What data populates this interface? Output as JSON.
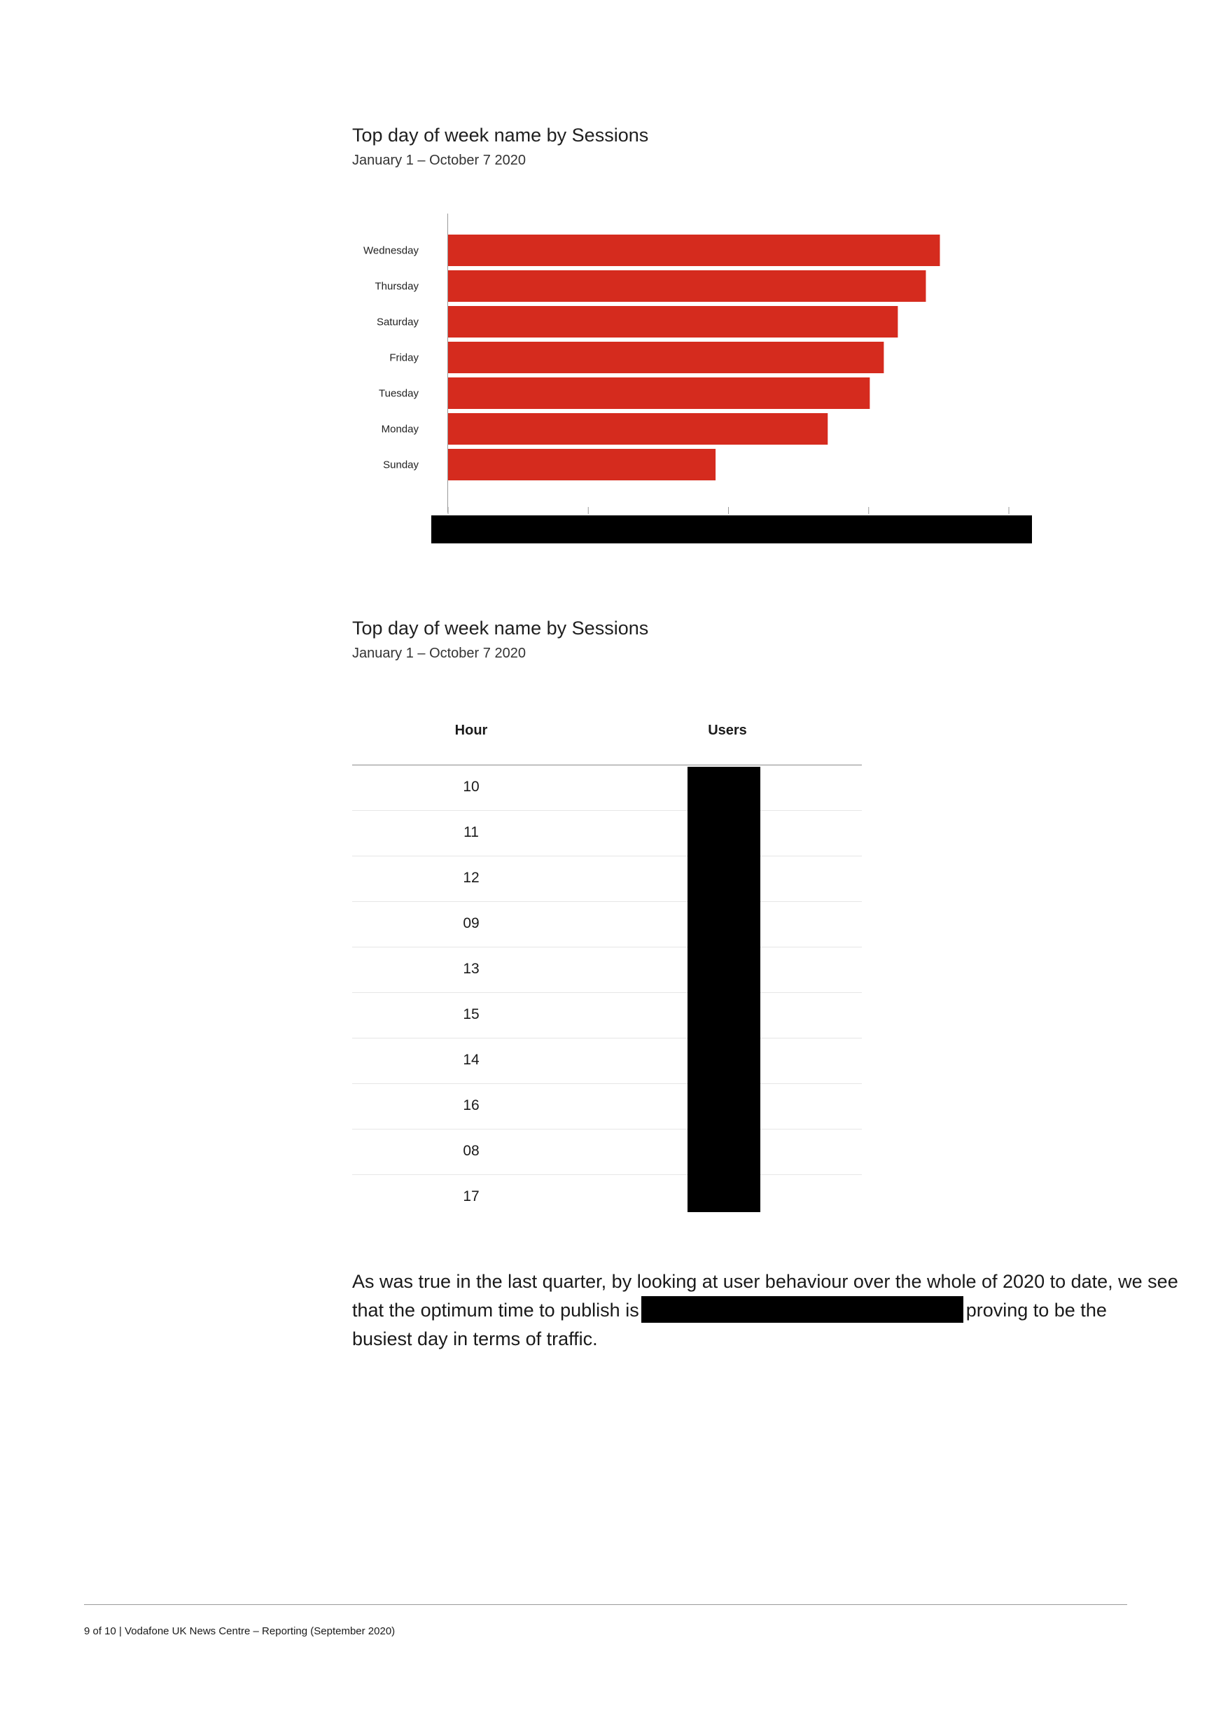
{
  "chart_section": {
    "title": "Top day of week name by Sessions",
    "subtitle": "January 1 – October 7 2020"
  },
  "chart_data": {
    "type": "bar",
    "orientation": "horizontal",
    "categories": [
      "Wednesday",
      "Thursday",
      "Saturday",
      "Friday",
      "Tuesday",
      "Monday",
      "Sunday"
    ],
    "values": [
      0.877,
      0.852,
      0.802,
      0.777,
      0.752,
      0.677,
      0.477
    ],
    "value_units": "fraction of visible x-axis range (axis values redacted)",
    "xlim": [
      0,
      1
    ],
    "bar_color": "#d52b1e",
    "x_tick_count": 5,
    "x_axis_labels_redacted": true
  },
  "table_section": {
    "title": "Top day of week name by Sessions",
    "subtitle": "January 1 – October 7 2020",
    "headers": {
      "hour": "Hour",
      "users": "Users"
    },
    "rows": [
      {
        "hour": "10"
      },
      {
        "hour": "11"
      },
      {
        "hour": "12"
      },
      {
        "hour": "09"
      },
      {
        "hour": "13"
      },
      {
        "hour": "15"
      },
      {
        "hour": "14"
      },
      {
        "hour": "16"
      },
      {
        "hour": "08"
      },
      {
        "hour": "17"
      }
    ],
    "users_values_redacted": true
  },
  "paragraph": {
    "line1": "As was true in the last quarter, by looking at user behaviour over the whole of 2020 to date, we see",
    "line2_before": "that the optimum time to publish is",
    "line2_after": "proving to be the",
    "line3": "busiest day in terms of traffic."
  },
  "footer": {
    "text": "9 of 10 |  Vodafone UK News Centre – Reporting (September 2020)"
  },
  "colors": {
    "accent_red": "#d52b1e",
    "redaction": "#000000"
  }
}
